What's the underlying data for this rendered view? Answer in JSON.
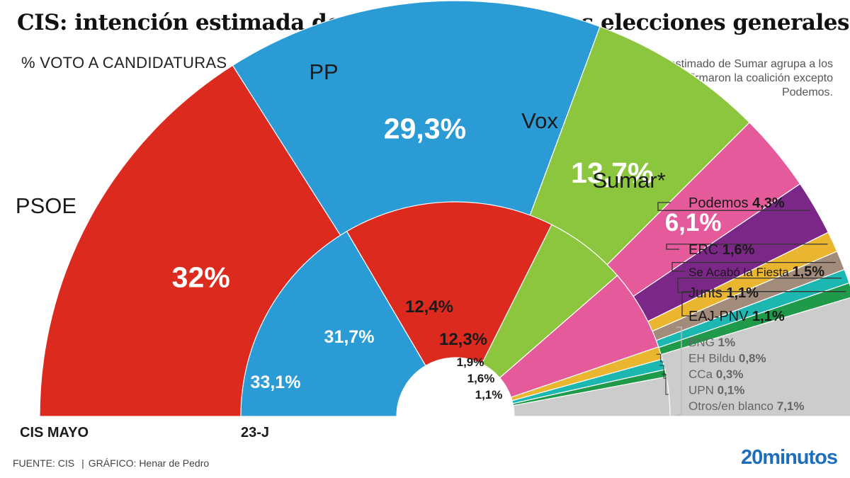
{
  "title": "CIS: intención estimada de voto en las próximas elecciones generales",
  "subtitle": "% VOTO A CANDIDATURAS",
  "note": "*El voto estimado de Sumar agrupa a los partidos que firmaron la coalición excepto Podemos.",
  "footer": {
    "source": "FUENTE: CIS",
    "credit": "GRÁFICO: Henar de Pedro"
  },
  "brand": "20minutos",
  "colors": {
    "PSOE": "#dc2a1e",
    "PP": "#2b9bd6",
    "Vox": "#8cc63f",
    "Sumar": "#e45a9b",
    "Podemos": "#7b2787",
    "ERC": "#eab630",
    "SAF": "#a38b7c",
    "Junts": "#1bb7b0",
    "PNV": "#1f9a4a",
    "Others": "#cccccc"
  },
  "chart_data": [
    {
      "type": "pie",
      "subtype": "semicircle-donut",
      "name": "CIS MAYO",
      "slices": [
        {
          "key": "PSOE",
          "label": "PSOE",
          "value": 32,
          "value_label": "32%"
        },
        {
          "key": "PP",
          "label": "PP",
          "value": 29.3,
          "value_label": "29,3%"
        },
        {
          "key": "Vox",
          "label": "Vox",
          "value": 13.7,
          "value_label": "13,7%"
        },
        {
          "key": "Sumar",
          "label": "Sumar*",
          "value": 6.1,
          "value_label": "6,1%"
        },
        {
          "key": "Podemos",
          "label": "Podemos",
          "value": 4.3,
          "value_label": "4,3%"
        },
        {
          "key": "ERC",
          "label": "ERC",
          "value": 1.6,
          "value_label": "1,6%"
        },
        {
          "key": "SAF",
          "label": "Se Acabó la Fiesta",
          "value": 1.5,
          "value_label": "1,5%"
        },
        {
          "key": "Junts",
          "label": "Junts",
          "value": 1.1,
          "value_label": "1,1%"
        },
        {
          "key": "PNV",
          "label": "EAJ-PNV",
          "value": 1.1,
          "value_label": "1,1%"
        },
        {
          "key": "Others",
          "label": "",
          "value": 9.3,
          "value_label": ""
        }
      ],
      "others_breakdown": [
        {
          "label": "BNG",
          "value": 1,
          "value_label": "1%"
        },
        {
          "label": "EH Bildu",
          "value": 0.8,
          "value_label": "0,8%"
        },
        {
          "label": "CCa",
          "value": 0.3,
          "value_label": "0,3%"
        },
        {
          "label": "UPN",
          "value": 0.1,
          "value_label": "0,1%"
        },
        {
          "label": "Otros/en blanco",
          "value": 7.1,
          "value_label": "7,1%"
        }
      ]
    },
    {
      "type": "pie",
      "subtype": "semicircle-donut",
      "name": "23-J",
      "slices": [
        {
          "key": "PP",
          "value": 33.1,
          "value_label": "33,1%"
        },
        {
          "key": "PSOE",
          "value": 31.7,
          "value_label": "31,7%"
        },
        {
          "key": "Vox",
          "value": 12.4,
          "value_label": "12,4%"
        },
        {
          "key": "Sumar",
          "value": 12.3,
          "value_label": "12,3%"
        },
        {
          "key": "ERC",
          "value": 1.9,
          "value_label": "1,9%"
        },
        {
          "key": "Junts",
          "value": 1.6,
          "value_label": "1,6%"
        },
        {
          "key": "PNV",
          "value": 1.1,
          "value_label": "1,1%"
        },
        {
          "key": "Others",
          "value": 5.9,
          "value_label": ""
        }
      ]
    }
  ]
}
